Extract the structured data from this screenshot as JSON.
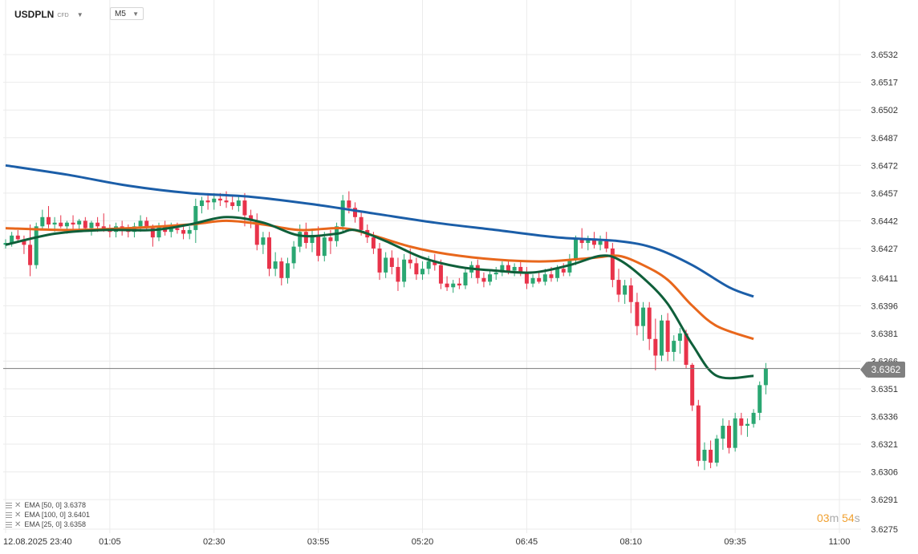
{
  "header": {
    "symbol": "USDPLN",
    "instrument_type": "CFD",
    "timeframe": "M5"
  },
  "legend": [
    {
      "label": "EMA [50, 0]",
      "value": "3.6378",
      "color": "#e8671c"
    },
    {
      "label": "EMA [100, 0]",
      "value": "3.6401",
      "color": "#1b5ea8"
    },
    {
      "label": "EMA [25, 0]",
      "value": "3.6358",
      "color": "#0f5f3a"
    }
  ],
  "timer": {
    "minutes": "03",
    "m_unit": "m",
    "seconds": "54",
    "s_unit": "s"
  },
  "current_price_label": "3.6362",
  "chart_data": {
    "type": "candlestick",
    "ylim": [
      3.6275,
      3.6539
    ],
    "y_ticks": [
      "3.6532",
      "3.6517",
      "3.6502",
      "3.6487",
      "3.6472",
      "3.6457",
      "3.6442",
      "3.6427",
      "3.6411",
      "3.6396",
      "3.6381",
      "3.6366",
      "3.6351",
      "3.6336",
      "3.6321",
      "3.6306",
      "3.6291",
      "3.6275"
    ],
    "x_ticks": [
      {
        "label": "12.08.2025  23:40",
        "bar": 0
      },
      {
        "label": "01:05",
        "bar": 17
      },
      {
        "label": "02:30",
        "bar": 34
      },
      {
        "label": "03:55",
        "bar": 51
      },
      {
        "label": "05:20",
        "bar": 68
      },
      {
        "label": "06:45",
        "bar": 85
      },
      {
        "label": "08:10",
        "bar": 102
      },
      {
        "label": "09:35",
        "bar": 119
      },
      {
        "label": "11:00",
        "bar": 136
      }
    ],
    "bar_count": 124,
    "current_price": 3.6362,
    "up_color": "#2aa772",
    "down_color": "#e8334a",
    "candles": [
      [
        3.6429,
        3.6432,
        3.6427,
        3.643
      ],
      [
        3.643,
        3.6436,
        3.6428,
        3.6434
      ],
      [
        3.6434,
        3.6437,
        3.6431,
        3.6432
      ],
      [
        3.6432,
        3.6434,
        3.6424,
        3.6429
      ],
      [
        3.6429,
        3.644,
        3.6412,
        3.6418
      ],
      [
        3.6418,
        3.6441,
        3.6416,
        3.6439
      ],
      [
        3.6439,
        3.6448,
        3.6437,
        3.6444
      ],
      [
        3.6444,
        3.645,
        3.6438,
        3.644
      ],
      [
        3.644,
        3.6444,
        3.6436,
        3.6441
      ],
      [
        3.6441,
        3.6445,
        3.6438,
        3.6439
      ],
      [
        3.6439,
        3.6442,
        3.6435,
        3.6441
      ],
      [
        3.6441,
        3.6445,
        3.6437,
        3.644
      ],
      [
        3.644,
        3.6443,
        3.6436,
        3.6442
      ],
      [
        3.6442,
        3.6444,
        3.6437,
        3.6438
      ],
      [
        3.6438,
        3.6442,
        3.6434,
        3.6441
      ],
      [
        3.6441,
        3.6444,
        3.6436,
        3.6439
      ],
      [
        3.6439,
        3.6446,
        3.6436,
        3.6438
      ],
      [
        3.6438,
        3.644,
        3.6433,
        3.6436
      ],
      [
        3.6436,
        3.6441,
        3.6433,
        3.6439
      ],
      [
        3.6439,
        3.6442,
        3.6434,
        3.6437
      ],
      [
        3.6437,
        3.644,
        3.6433,
        3.6436
      ],
      [
        3.6436,
        3.6441,
        3.6433,
        3.6439
      ],
      [
        3.6439,
        3.6445,
        3.6436,
        3.6442
      ],
      [
        3.6442,
        3.6444,
        3.6437,
        3.6438
      ],
      [
        3.6438,
        3.644,
        3.6428,
        3.6433
      ],
      [
        3.6433,
        3.6441,
        3.6431,
        3.6439
      ],
      [
        3.6439,
        3.6442,
        3.6434,
        3.6436
      ],
      [
        3.6436,
        3.6441,
        3.6433,
        3.6438
      ],
      [
        3.6438,
        3.6441,
        3.6435,
        3.6437
      ],
      [
        3.6437,
        3.6439,
        3.6432,
        3.6435
      ],
      [
        3.6435,
        3.6439,
        3.6432,
        3.6437
      ],
      [
        3.6437,
        3.6454,
        3.643,
        3.645
      ],
      [
        3.645,
        3.6455,
        3.6446,
        3.6453
      ],
      [
        3.6453,
        3.6457,
        3.6448,
        3.6452
      ],
      [
        3.6452,
        3.6457,
        3.6448,
        3.6454
      ],
      [
        3.6454,
        3.6457,
        3.645,
        3.6453
      ],
      [
        3.6453,
        3.6458,
        3.6449,
        3.6452
      ],
      [
        3.6452,
        3.6456,
        3.6448,
        3.645
      ],
      [
        3.645,
        3.6455,
        3.6447,
        3.6453
      ],
      [
        3.6453,
        3.6457,
        3.6439,
        3.6445
      ],
      [
        3.6445,
        3.6448,
        3.6438,
        3.6442
      ],
      [
        3.6442,
        3.6446,
        3.6426,
        3.6429
      ],
      [
        3.6429,
        3.6436,
        3.6424,
        3.6433
      ],
      [
        3.6433,
        3.6436,
        3.6412,
        3.6416
      ],
      [
        3.6416,
        3.6425,
        3.6412,
        3.642
      ],
      [
        3.642,
        3.6422,
        3.6407,
        3.6411
      ],
      [
        3.6411,
        3.6422,
        3.6408,
        3.6419
      ],
      [
        3.6419,
        3.6431,
        3.6416,
        3.6428
      ],
      [
        3.6428,
        3.644,
        3.6425,
        3.6436
      ],
      [
        3.6436,
        3.6441,
        3.6427,
        3.643
      ],
      [
        3.643,
        3.6437,
        3.6425,
        3.6434
      ],
      [
        3.6434,
        3.6439,
        3.642,
        3.6423
      ],
      [
        3.6423,
        3.6436,
        3.642,
        3.6433
      ],
      [
        3.6433,
        3.6437,
        3.6424,
        3.6431
      ],
      [
        3.6431,
        3.6441,
        3.6428,
        3.6439
      ],
      [
        3.6439,
        3.6456,
        3.6436,
        3.6453
      ],
      [
        3.6453,
        3.6458,
        3.6446,
        3.6449
      ],
      [
        3.6449,
        3.6452,
        3.6441,
        3.6444
      ],
      [
        3.6444,
        3.6447,
        3.6434,
        3.6437
      ],
      [
        3.6437,
        3.644,
        3.643,
        3.6433
      ],
      [
        3.6433,
        3.6436,
        3.6424,
        3.6427
      ],
      [
        3.6427,
        3.643,
        3.641,
        3.6414
      ],
      [
        3.6414,
        3.6425,
        3.6411,
        3.6422
      ],
      [
        3.6422,
        3.6426,
        3.6413,
        3.6417
      ],
      [
        3.6417,
        3.6422,
        3.6404,
        3.6409
      ],
      [
        3.6409,
        3.6424,
        3.6406,
        3.6421
      ],
      [
        3.6421,
        3.6427,
        3.6416,
        3.6419
      ],
      [
        3.6419,
        3.6422,
        3.641,
        3.6413
      ],
      [
        3.6413,
        3.642,
        3.641,
        3.6416
      ],
      [
        3.6416,
        3.6423,
        3.6413,
        3.642
      ],
      [
        3.642,
        3.6424,
        3.6415,
        3.6418
      ],
      [
        3.6418,
        3.6421,
        3.6405,
        3.6408
      ],
      [
        3.6408,
        3.6412,
        3.6404,
        3.6406
      ],
      [
        3.6406,
        3.641,
        3.6403,
        3.6408
      ],
      [
        3.6408,
        3.6411,
        3.6405,
        3.6407
      ],
      [
        3.6407,
        3.6416,
        3.6405,
        3.6414
      ],
      [
        3.6414,
        3.642,
        3.6411,
        3.6418
      ],
      [
        3.6418,
        3.6421,
        3.6408,
        3.6411
      ],
      [
        3.6411,
        3.6414,
        3.6406,
        3.6409
      ],
      [
        3.6409,
        3.6415,
        3.6407,
        3.6413
      ],
      [
        3.6413,
        3.6417,
        3.641,
        3.6414
      ],
      [
        3.6414,
        3.642,
        3.6412,
        3.6418
      ],
      [
        3.6418,
        3.642,
        3.6413,
        3.6415
      ],
      [
        3.6415,
        3.6419,
        3.6412,
        3.6417
      ],
      [
        3.6417,
        3.642,
        3.6412,
        3.6414
      ],
      [
        3.6414,
        3.6417,
        3.6405,
        3.6408
      ],
      [
        3.6408,
        3.6413,
        3.6406,
        3.6411
      ],
      [
        3.6411,
        3.6415,
        3.6408,
        3.6409
      ],
      [
        3.6409,
        3.6416,
        3.6407,
        3.6413
      ],
      [
        3.6413,
        3.6417,
        3.6409,
        3.6411
      ],
      [
        3.6411,
        3.6418,
        3.6409,
        3.6416
      ],
      [
        3.6416,
        3.6419,
        3.6412,
        3.6414
      ],
      [
        3.6414,
        3.6424,
        3.6412,
        3.6421
      ],
      [
        3.6421,
        3.6434,
        3.6418,
        3.6432
      ],
      [
        3.6432,
        3.6438,
        3.6427,
        3.643
      ],
      [
        3.643,
        3.6434,
        3.6426,
        3.6432
      ],
      [
        3.6432,
        3.6436,
        3.6427,
        3.6429
      ],
      [
        3.6429,
        3.6434,
        3.6426,
        3.6431
      ],
      [
        3.6431,
        3.6436,
        3.6425,
        3.6427
      ],
      [
        3.6427,
        3.643,
        3.6406,
        3.641
      ],
      [
        3.641,
        3.6416,
        3.6398,
        3.6402
      ],
      [
        3.6402,
        3.641,
        3.6397,
        3.6407
      ],
      [
        3.6407,
        3.6411,
        3.6392,
        3.6398
      ],
      [
        3.6398,
        3.6403,
        3.638,
        3.6385
      ],
      [
        3.6385,
        3.6398,
        3.6377,
        3.6395
      ],
      [
        3.6395,
        3.6398,
        3.6372,
        3.6378
      ],
      [
        3.6378,
        3.6389,
        3.6361,
        3.6369
      ],
      [
        3.6369,
        3.6391,
        3.6366,
        3.6388
      ],
      [
        3.6388,
        3.6392,
        3.6366,
        3.6371
      ],
      [
        3.6371,
        3.638,
        3.6366,
        3.6377
      ],
      [
        3.6377,
        3.6384,
        3.637,
        3.6381
      ],
      [
        3.6381,
        3.6383,
        3.6362,
        3.6364
      ],
      [
        3.6364,
        3.6365,
        3.6339,
        3.6342
      ],
      [
        3.6342,
        3.6345,
        3.6309,
        3.6312
      ],
      [
        3.6312,
        3.6322,
        3.6307,
        3.6318
      ],
      [
        3.6318,
        3.6323,
        3.6308,
        3.6311
      ],
      [
        3.6311,
        3.6326,
        3.6309,
        3.6324
      ],
      [
        3.6324,
        3.6335,
        3.6318,
        3.6331
      ],
      [
        3.6331,
        3.6334,
        3.6316,
        3.6319
      ],
      [
        3.6319,
        3.6338,
        3.6317,
        3.6335
      ],
      [
        3.6335,
        3.6338,
        3.6326,
        3.6331
      ],
      [
        3.6331,
        3.6335,
        3.6325,
        3.6332
      ],
      [
        3.6332,
        3.634,
        3.633,
        3.6338
      ],
      [
        3.6338,
        3.6355,
        3.6334,
        3.6353
      ],
      [
        3.6353,
        3.6365,
        3.6348,
        3.6362
      ]
    ],
    "ema25": [
      [
        0,
        3.6429
      ],
      [
        8,
        3.6435
      ],
      [
        16,
        3.6437
      ],
      [
        24,
        3.6437
      ],
      [
        30,
        3.644
      ],
      [
        36,
        3.6444
      ],
      [
        42,
        3.6441
      ],
      [
        48,
        3.6434
      ],
      [
        54,
        3.6435
      ],
      [
        57,
        3.6437
      ],
      [
        62,
        3.6431
      ],
      [
        68,
        3.6422
      ],
      [
        74,
        3.6417
      ],
      [
        80,
        3.6415
      ],
      [
        86,
        3.6414
      ],
      [
        92,
        3.6418
      ],
      [
        97,
        3.6423
      ],
      [
        100,
        3.6421
      ],
      [
        104,
        3.6411
      ],
      [
        108,
        3.6397
      ],
      [
        112,
        3.6375
      ],
      [
        116,
        3.6358
      ],
      [
        122,
        3.6358
      ]
    ],
    "ema50": [
      [
        0,
        3.6438
      ],
      [
        10,
        3.6437
      ],
      [
        20,
        3.6438
      ],
      [
        30,
        3.644
      ],
      [
        36,
        3.6442
      ],
      [
        42,
        3.644
      ],
      [
        48,
        3.6437
      ],
      [
        55,
        3.6438
      ],
      [
        60,
        3.6434
      ],
      [
        66,
        3.6428
      ],
      [
        72,
        3.6424
      ],
      [
        80,
        3.6421
      ],
      [
        88,
        3.642
      ],
      [
        96,
        3.6422
      ],
      [
        100,
        3.6423
      ],
      [
        104,
        3.6418
      ],
      [
        108,
        3.641
      ],
      [
        112,
        3.6396
      ],
      [
        116,
        3.6385
      ],
      [
        122,
        3.6378
      ]
    ],
    "ema100": [
      [
        0,
        3.6472
      ],
      [
        10,
        3.6467
      ],
      [
        20,
        3.6461
      ],
      [
        30,
        3.6457
      ],
      [
        40,
        3.6455
      ],
      [
        50,
        3.6451
      ],
      [
        60,
        3.6446
      ],
      [
        70,
        3.6441
      ],
      [
        80,
        3.6437
      ],
      [
        90,
        3.6433
      ],
      [
        100,
        3.6431
      ],
      [
        106,
        3.6427
      ],
      [
        112,
        3.6418
      ],
      [
        118,
        3.6406
      ],
      [
        122,
        3.6401
      ]
    ]
  }
}
